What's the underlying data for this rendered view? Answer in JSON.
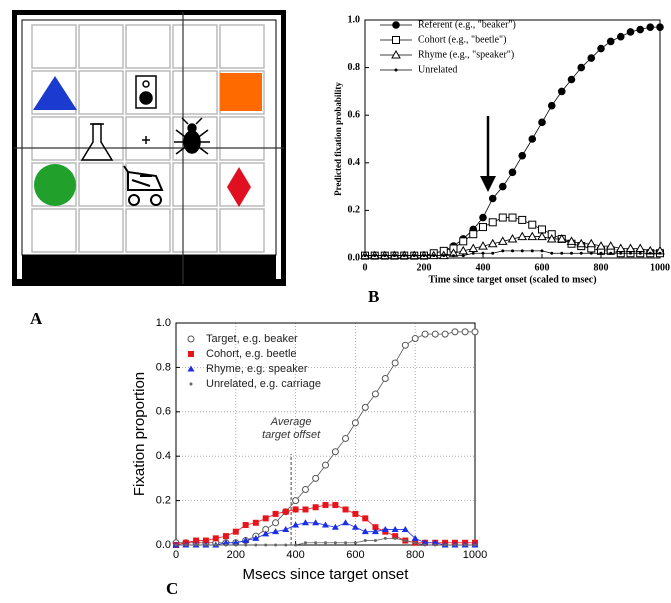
{
  "panel_labels": [
    "A",
    "B",
    "C"
  ],
  "chart_data": [
    {
      "type": "line",
      "xlabel": "Time since target onset (scaled to msec)",
      "ylabel": "Predicted fixation probability",
      "xlim": [
        0,
        1000
      ],
      "ylim": [
        0,
        1.0
      ],
      "xticks": [
        0,
        200,
        400,
        600,
        800,
        1000
      ],
      "yticks": [
        {
          "value": 0,
          "label": "0.0"
        },
        0.2,
        0.4,
        0.6,
        0.8,
        {
          "value": 1.0,
          "label": "1.0"
        }
      ],
      "grid": false,
      "legend": "upper-left",
      "x": [
        0,
        33,
        67,
        100,
        133,
        167,
        200,
        233,
        267,
        300,
        333,
        367,
        400,
        433,
        467,
        500,
        533,
        567,
        600,
        633,
        667,
        700,
        733,
        767,
        800,
        833,
        867,
        900,
        933,
        967,
        1000
      ],
      "series": [
        {
          "name": "Referent (e.g., \"beaker\")",
          "color": "#000000",
          "marker": "circle-filled",
          "values": [
            0.01,
            0.01,
            0.01,
            0.01,
            0.01,
            0.01,
            0.01,
            0.02,
            0.03,
            0.05,
            0.08,
            0.12,
            0.17,
            0.25,
            0.3,
            0.36,
            0.43,
            0.5,
            0.57,
            0.64,
            0.7,
            0.75,
            0.8,
            0.84,
            0.88,
            0.91,
            0.93,
            0.95,
            0.96,
            0.97,
            0.97
          ]
        },
        {
          "name": "Cohort (e.g., \"beetle\")",
          "color": "#000000",
          "marker": "square-open",
          "values": [
            0.01,
            0.01,
            0.01,
            0.01,
            0.01,
            0.01,
            0.01,
            0.02,
            0.03,
            0.04,
            0.07,
            0.1,
            0.13,
            0.15,
            0.17,
            0.17,
            0.16,
            0.14,
            0.12,
            0.1,
            0.08,
            0.06,
            0.05,
            0.04,
            0.03,
            0.03,
            0.02,
            0.02,
            0.02,
            0.02,
            0.02
          ]
        },
        {
          "name": "Rhyme (e.g., \"speaker\")",
          "color": "#000000",
          "marker": "triangle-open",
          "values": [
            0.01,
            0.01,
            0.01,
            0.01,
            0.01,
            0.01,
            0.01,
            0.01,
            0.01,
            0.02,
            0.03,
            0.04,
            0.05,
            0.06,
            0.07,
            0.08,
            0.09,
            0.09,
            0.09,
            0.08,
            0.08,
            0.07,
            0.06,
            0.06,
            0.05,
            0.05,
            0.04,
            0.04,
            0.04,
            0.03,
            0.03
          ]
        },
        {
          "name": "Unrelated",
          "color": "#000000",
          "marker": "dot",
          "values": [
            0.01,
            0.01,
            0.01,
            0.01,
            0.01,
            0.01,
            0.01,
            0.01,
            0.01,
            0.01,
            0.01,
            0.02,
            0.02,
            0.02,
            0.03,
            0.03,
            0.03,
            0.03,
            0.03,
            0.02,
            0.02,
            0.02,
            0.02,
            0.02,
            0.02,
            0.02,
            0.02,
            0.02,
            0.02,
            0.02,
            0.02
          ]
        }
      ]
    },
    {
      "type": "line",
      "xlabel": "Msecs since target onset",
      "ylabel": "Fixation proportion",
      "xlim": [
        0,
        1000
      ],
      "ylim": [
        0,
        1.0
      ],
      "xticks": [
        0,
        200,
        400,
        600,
        800,
        1000
      ],
      "yticks": [
        {
          "value": 0,
          "label": "0.0"
        },
        0.2,
        0.4,
        0.6,
        0.8,
        {
          "value": 1.0,
          "label": "1.0"
        }
      ],
      "grid": true,
      "legend": "upper-left",
      "annotation_lines": [
        "Average",
        "target offset"
      ],
      "annotation_x": 385,
      "x": [
        0,
        33,
        67,
        100,
        133,
        167,
        200,
        233,
        267,
        300,
        333,
        367,
        400,
        433,
        467,
        500,
        533,
        567,
        600,
        633,
        667,
        700,
        733,
        767,
        800,
        833,
        867,
        900,
        933,
        967,
        1000
      ],
      "series": [
        {
          "name": "Target, e.g. beaker",
          "color": "#555555",
          "marker": "circle-open",
          "values": [
            0.01,
            0.01,
            0.01,
            0.01,
            0.01,
            0.01,
            0.01,
            0.02,
            0.04,
            0.07,
            0.1,
            0.15,
            0.2,
            0.25,
            0.3,
            0.36,
            0.42,
            0.48,
            0.55,
            0.62,
            0.68,
            0.75,
            0.82,
            0.9,
            0.93,
            0.95,
            0.95,
            0.95,
            0.96,
            0.96,
            0.96
          ]
        },
        {
          "name": "Cohort, e.g. beetle",
          "color": "#e8141c",
          "marker": "square-filled",
          "values": [
            0.0,
            0.01,
            0.02,
            0.02,
            0.03,
            0.04,
            0.06,
            0.09,
            0.1,
            0.12,
            0.14,
            0.15,
            0.16,
            0.16,
            0.17,
            0.18,
            0.18,
            0.16,
            0.14,
            0.12,
            0.08,
            0.06,
            0.04,
            0.02,
            0.01,
            0.01,
            0.01,
            0.01,
            0.01,
            0.01,
            0.01
          ]
        },
        {
          "name": "Rhyme, e.g. speaker",
          "color": "#1a2ee8",
          "marker": "triangle-filled",
          "values": [
            0.0,
            0.0,
            0.0,
            0.0,
            0.0,
            0.01,
            0.01,
            0.02,
            0.03,
            0.05,
            0.06,
            0.07,
            0.09,
            0.1,
            0.1,
            0.09,
            0.08,
            0.1,
            0.08,
            0.06,
            0.06,
            0.07,
            0.07,
            0.07,
            0.03,
            0.01,
            0.01,
            0.0,
            0.0,
            0.0,
            0.0
          ]
        },
        {
          "name": "Unrelated, e.g. carriage",
          "color": "#666666",
          "marker": "dot",
          "values": [
            0.0,
            0.0,
            0.0,
            0.0,
            0.0,
            0.0,
            0.0,
            0.0,
            0.0,
            0.0,
            0.0,
            0.0,
            0.0,
            0.01,
            0.01,
            0.01,
            0.01,
            0.01,
            0.01,
            0.02,
            0.02,
            0.03,
            0.03,
            0.02,
            0.01,
            0.0,
            0.0,
            0.0,
            0.0,
            0.0,
            0.0
          ]
        }
      ]
    }
  ]
}
